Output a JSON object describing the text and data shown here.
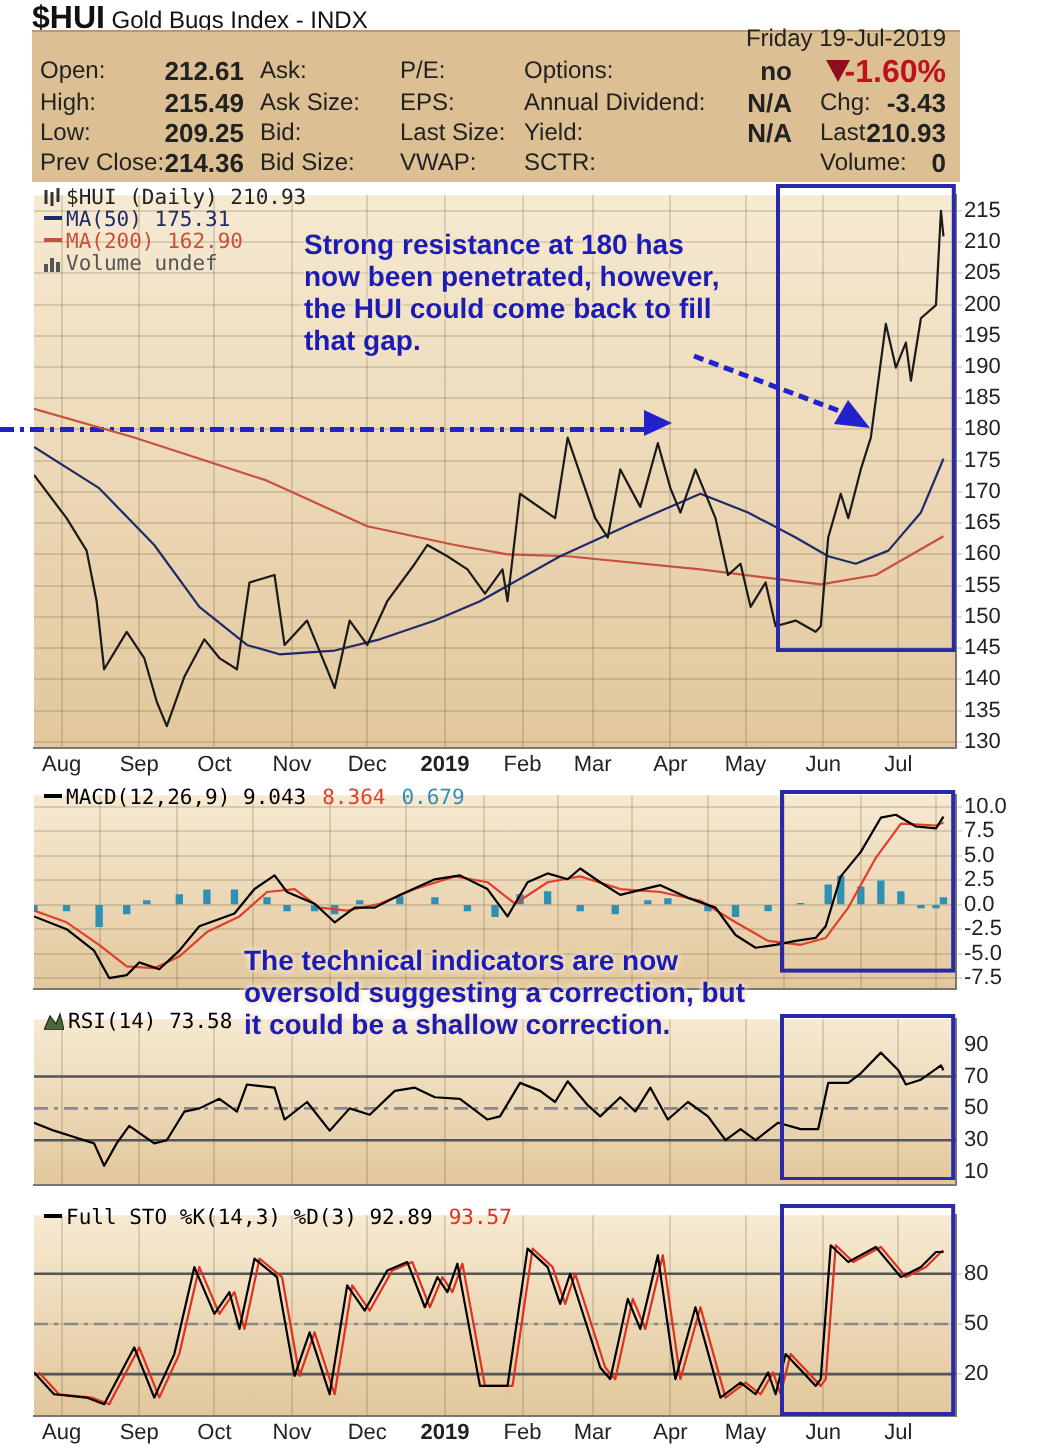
{
  "chart_data": [
    {
      "type": "other",
      "title": "$HUI",
      "subtitle": "Gold Bugs Index - INDX",
      "annotations": [
        "Friday 19-Jul-2019",
        "Open:",
        "212.61",
        "Ask:",
        "P/E:",
        "Options:",
        "no",
        "-1.60%",
        "High:",
        "215.49",
        "Ask Size:",
        "EPS:",
        "Annual Dividend:",
        "N/A",
        "Chg:",
        "-3.43",
        "Low:",
        "209.25",
        "Bid:",
        "Last Size:",
        "Yield:",
        "N/A",
        "Last:",
        "210.93",
        "Prev Close:",
        "214.36",
        "Bid Size:",
        "VWAP:",
        "SCTR:",
        "Volume:",
        "0"
      ]
    },
    {
      "type": "line",
      "xlim": [
        "2018-07-21",
        "2019-07-24"
      ],
      "xticks": [
        {
          "value": "2018-08-01",
          "label": "Aug"
        },
        {
          "value": "2018-09-01",
          "label": "Sep"
        },
        {
          "value": "2018-10-01",
          "label": "Oct"
        },
        {
          "value": "2018-11-01",
          "label": "Nov"
        },
        {
          "value": "2018-12-01",
          "label": "Dec"
        },
        {
          "value": "2019-01-01",
          "label": "2019"
        },
        {
          "value": "2019-02-01",
          "label": "Feb"
        },
        {
          "value": "2019-03-01",
          "label": "Mar"
        },
        {
          "value": "2019-04-01",
          "label": "Apr"
        },
        {
          "value": "2019-05-01",
          "label": "May"
        },
        {
          "value": "2019-06-01",
          "label": "Jun"
        },
        {
          "value": "2019-07-01",
          "label": "Jul"
        }
      ],
      "ylim": [
        129,
        217.5
      ],
      "yticks": [
        130,
        135,
        140,
        145,
        150,
        155,
        160,
        165,
        170,
        175,
        180,
        185,
        190,
        195,
        200,
        205,
        210,
        215
      ],
      "grid": true,
      "legend": "top left",
      "marker": "none",
      "ref_lines": [
        {
          "axis": "y",
          "value": 180,
          "color": "#2222cc",
          "line_style": "dashed"
        }
      ],
      "annotations": [
        "Volume undef",
        "Strong resistance at 180 has now been penetrated, however, the HUI could come back to fill that gap."
      ],
      "series": [
        {
          "name": "$HUI (Daily) 210.93",
          "color": "#1a1a1a",
          "x": [
            "2018-07-21",
            "2018-08-03",
            "2018-08-11",
            "2018-08-15",
            "2018-08-18",
            "2018-08-27",
            "2018-09-03",
            "2018-09-08",
            "2018-09-12",
            "2018-09-19",
            "2018-09-27",
            "2018-10-03",
            "2018-10-10",
            "2018-10-15",
            "2018-10-25",
            "2018-10-29",
            "2018-11-07",
            "2018-11-15",
            "2018-11-18",
            "2018-11-24",
            "2018-12-01",
            "2018-12-09",
            "2018-12-20",
            "2018-12-25",
            "2019-01-02",
            "2019-01-10",
            "2019-01-17",
            "2019-01-24",
            "2019-01-26",
            "2019-01-31",
            "2019-02-14",
            "2019-02-19",
            "2019-03-02",
            "2019-03-07",
            "2019-03-12",
            "2019-03-20",
            "2019-03-27",
            "2019-04-01",
            "2019-04-05",
            "2019-04-11",
            "2019-04-19",
            "2019-04-24",
            "2019-04-29",
            "2019-05-03",
            "2019-05-09",
            "2019-05-13",
            "2019-05-21",
            "2019-05-29",
            "2019-05-31",
            "2019-06-03",
            "2019-06-08",
            "2019-06-11",
            "2019-06-16",
            "2019-06-20",
            "2019-06-23",
            "2019-06-26",
            "2019-06-30",
            "2019-07-04",
            "2019-07-06",
            "2019-07-10",
            "2019-07-16",
            "2019-07-18",
            "2019-07-19"
          ],
          "values": [
            172.7,
            165.8,
            160.6,
            152.5,
            141.6,
            147.6,
            143.4,
            136.4,
            132.5,
            140.4,
            146.4,
            143.4,
            141.6,
            155.5,
            156.7,
            145.5,
            149.4,
            141.6,
            138.6,
            149.4,
            145.5,
            152.5,
            158.5,
            161.5,
            159.7,
            157.6,
            153.7,
            157.6,
            152.5,
            169.7,
            165.8,
            178.7,
            165.8,
            162.7,
            173.6,
            167.6,
            177.8,
            170.6,
            166.7,
            173.6,
            165.8,
            156.7,
            158.5,
            151.6,
            155.5,
            148.5,
            149.4,
            147.6,
            148.5,
            162.7,
            169.7,
            165.8,
            173.6,
            178.7,
            187.8,
            196.9,
            189.9,
            193.9,
            187.8,
            197.8,
            199.9,
            215,
            210.9
          ]
        },
        {
          "name": "MA(50) 175.31",
          "color": "#1f2a6b",
          "x": [
            "2018-07-21",
            "2018-08-16",
            "2018-09-07",
            "2018-09-25",
            "2018-10-14",
            "2018-10-27",
            "2018-11-18",
            "2018-12-06",
            "2018-12-28",
            "2019-01-15",
            "2019-02-16",
            "2019-03-18",
            "2019-04-13",
            "2019-05-02",
            "2019-05-21",
            "2019-06-03",
            "2019-06-14",
            "2019-06-27",
            "2019-07-10",
            "2019-07-19"
          ],
          "values": [
            177.2,
            170.6,
            161.5,
            151.6,
            145.5,
            144.0,
            144.6,
            146.4,
            149.4,
            152.5,
            159.7,
            165.2,
            169.7,
            166.7,
            162.7,
            159.7,
            158.5,
            160.6,
            166.7,
            175.3
          ]
        },
        {
          "name": "MA(200) 162.90",
          "color": "#c8503c",
          "x": [
            "2018-07-21",
            "2018-08-30",
            "2018-10-22",
            "2018-12-01",
            "2019-01-05",
            "2019-01-26",
            "2019-02-19",
            "2019-04-13",
            "2019-05-31",
            "2019-06-22",
            "2019-07-19"
          ],
          "values": [
            183.3,
            178.7,
            171.8,
            164.5,
            161.5,
            160.0,
            159.7,
            157.6,
            155.2,
            156.7,
            162.9
          ]
        }
      ]
    },
    {
      "type": "line",
      "xlim": [
        "2018-07-21",
        "2019-07-24"
      ],
      "xticks": [
        {
          "value": "2018-08-01",
          "label": null
        },
        {
          "value": "2018-09-01",
          "label": null
        },
        {
          "value": "2018-10-01",
          "label": null
        },
        {
          "value": "2018-11-01",
          "label": null
        },
        {
          "value": "2018-12-01",
          "label": null
        },
        {
          "value": "2019-01-01",
          "label": null
        },
        {
          "value": "2019-02-01",
          "label": null
        },
        {
          "value": "2019-03-01",
          "label": null
        },
        {
          "value": "2019-04-01",
          "label": null
        },
        {
          "value": "2019-05-01",
          "label": null
        },
        {
          "value": "2019-06-01",
          "label": null
        },
        {
          "value": "2019-07-01",
          "label": null
        }
      ],
      "ylim": [
        -8.6,
        11.2
      ],
      "yticks": [
        {
          "value": 10,
          "label": "10.0"
        },
        7.5,
        {
          "value": 5,
          "label": "5.0"
        },
        2.5,
        {
          "value": 0,
          "label": "0.0"
        },
        -2.5,
        {
          "value": -5,
          "label": "-5.0"
        },
        -7.5
      ],
      "tick_labels": "y",
      "grid": true,
      "legend": "top left",
      "marker": "none",
      "annotations": [
        "The technical indicators are now oversold suggesting a correction, but it could be a shallow correction."
      ],
      "series": [
        {
          "name": "MACD(12,26,9) 9.043",
          "color": "#000000",
          "x": [
            "2018-07-21",
            "2018-08-03",
            "2018-08-14",
            "2018-08-20",
            "2018-08-27",
            "2018-09-01",
            "2018-09-09",
            "2018-09-17",
            "2018-09-25",
            "2018-10-09",
            "2018-10-17",
            "2018-10-25",
            "2018-10-30",
            "2018-11-10",
            "2018-11-18",
            "2018-11-26",
            "2018-12-04",
            "2018-12-14",
            "2018-12-28",
            "2019-01-07",
            "2019-01-18",
            "2019-01-26",
            "2019-02-03",
            "2019-02-11",
            "2019-02-19",
            "2019-02-24",
            "2019-03-04",
            "2019-03-12",
            "2019-03-28",
            "2019-04-08",
            "2019-04-19",
            "2019-04-27",
            "2019-05-05",
            "2019-05-13",
            "2019-05-21",
            "2019-05-29",
            "2019-06-02",
            "2019-06-08",
            "2019-06-16",
            "2019-06-24",
            "2019-06-30",
            "2019-07-08",
            "2019-07-16",
            "2019-07-19"
          ],
          "values": [
            -1.2,
            -2.5,
            -4.7,
            -7.5,
            -7.2,
            -5.9,
            -6.6,
            -4.7,
            -2.2,
            -0.9,
            1.6,
            3.0,
            1.3,
            0.1,
            -1.8,
            -0.3,
            -0.3,
            1.0,
            2.6,
            3.0,
            1.6,
            -1.2,
            2.3,
            3.2,
            2.6,
            3.7,
            2.3,
            1.0,
            2.0,
            0.7,
            -0.3,
            -3.1,
            -4.4,
            -4.1,
            -3.7,
            -3.4,
            -2.2,
            2.9,
            5.4,
            8.9,
            9.2,
            8.0,
            7.8,
            9.0
          ]
        },
        {
          "name": "8.364",
          "color": "#e0402a",
          "x": [
            "2018-07-21",
            "2018-08-03",
            "2018-08-16",
            "2018-08-27",
            "2018-09-07",
            "2018-09-17",
            "2018-09-28",
            "2018-10-11",
            "2018-10-22",
            "2018-11-02",
            "2018-11-12",
            "2018-11-23",
            "2018-12-06",
            "2018-12-20",
            "2019-01-05",
            "2019-01-18",
            "2019-01-29",
            "2019-02-11",
            "2019-02-24",
            "2019-03-12",
            "2019-03-28",
            "2019-04-13",
            "2019-04-27",
            "2019-05-10",
            "2019-05-23",
            "2019-06-02",
            "2019-06-11",
            "2019-06-22",
            "2019-07-02",
            "2019-07-16",
            "2019-07-19"
          ],
          "values": [
            -0.6,
            -1.8,
            -4.1,
            -6.3,
            -6.5,
            -5.3,
            -2.8,
            -1.2,
            1.3,
            1.6,
            -0.3,
            -0.6,
            0.1,
            1.6,
            2.9,
            2.3,
            0.1,
            2.3,
            2.9,
            1.6,
            1.3,
            0.4,
            -1.8,
            -3.7,
            -4.1,
            -3.4,
            -0.3,
            4.8,
            8.3,
            8.1,
            8.4
          ]
        },
        {
          "name": "0.679",
          "type": "bar",
          "color": "#2f8fb5",
          "x": [
            "2018-07-21",
            "2018-08-03",
            "2018-08-16",
            "2018-08-27",
            "2018-09-04",
            "2018-09-17",
            "2018-09-28",
            "2018-10-09",
            "2018-10-22",
            "2018-10-30",
            "2018-11-10",
            "2018-11-18",
            "2018-11-28",
            "2018-12-14",
            "2018-12-28",
            "2019-01-10",
            "2019-01-21",
            "2019-01-31",
            "2019-02-11",
            "2019-02-24",
            "2019-03-10",
            "2019-03-23",
            "2019-03-31",
            "2019-04-16",
            "2019-04-27",
            "2019-05-10",
            "2019-05-23",
            "2019-06-03",
            "2019-06-08",
            "2019-06-16",
            "2019-06-24",
            "2019-07-02",
            "2019-07-10",
            "2019-07-16",
            "2019-07-19"
          ],
          "values": [
            -0.6,
            -0.6,
            -2.2,
            -0.9,
            0.4,
            1.0,
            1.5,
            1.5,
            0.7,
            -0.6,
            -0.6,
            -0.9,
            0.4,
            0.8,
            0.7,
            -0.6,
            -1.2,
            1.0,
            1.3,
            -0.6,
            -0.9,
            0.4,
            0.6,
            -0.6,
            -1.2,
            -0.6,
            0.1,
            2.0,
            2.9,
            1.8,
            2.4,
            1.3,
            -0.3,
            -0.3,
            0.7
          ]
        }
      ]
    },
    {
      "type": "line",
      "xlim": [
        "2018-07-21",
        "2019-07-24"
      ],
      "xticks": [
        {
          "value": "2018-08-01",
          "label": null
        },
        {
          "value": "2018-09-01",
          "label": null
        },
        {
          "value": "2018-10-01",
          "label": null
        },
        {
          "value": "2018-11-01",
          "label": null
        },
        {
          "value": "2018-12-01",
          "label": null
        },
        {
          "value": "2019-01-01",
          "label": null
        },
        {
          "value": "2019-02-01",
          "label": null
        },
        {
          "value": "2019-03-01",
          "label": null
        },
        {
          "value": "2019-04-01",
          "label": null
        },
        {
          "value": "2019-05-01",
          "label": null
        },
        {
          "value": "2019-06-01",
          "label": null
        },
        {
          "value": "2019-07-01",
          "label": null
        }
      ],
      "ylim": [
        2,
        106
      ],
      "yticks": [
        10,
        30,
        50,
        70,
        90
      ],
      "tick_labels": "y",
      "grid": "x",
      "legend": "top left",
      "marker": "none",
      "ref_lines": [
        {
          "axis": "y",
          "value": 70,
          "color": "#555555",
          "line_style": "solid"
        },
        {
          "axis": "y",
          "value": 50,
          "color": "#888888",
          "line_style": "dashed"
        },
        {
          "axis": "y",
          "value": 30,
          "color": "#555555",
          "line_style": "solid"
        }
      ],
      "series": [
        {
          "name": "RSI(14) 73.58",
          "color": "#000000",
          "x": [
            "2018-07-21",
            "2018-07-29",
            "2018-08-06",
            "2018-08-14",
            "2018-08-18",
            "2018-08-23",
            "2018-08-28",
            "2018-09-07",
            "2018-09-12",
            "2018-09-19",
            "2018-09-25",
            "2018-10-03",
            "2018-10-10",
            "2018-10-14",
            "2018-10-25",
            "2018-10-29",
            "2018-11-07",
            "2018-11-16",
            "2018-11-24",
            "2018-12-02",
            "2018-12-12",
            "2018-12-20",
            "2018-12-28",
            "2019-01-07",
            "2019-01-18",
            "2019-01-23",
            "2019-01-31",
            "2019-02-08",
            "2019-02-14",
            "2019-02-19",
            "2019-02-27",
            "2019-03-04",
            "2019-03-12",
            "2019-03-18",
            "2019-03-24",
            "2019-03-31",
            "2019-04-08",
            "2019-04-16",
            "2019-04-23",
            "2019-04-29",
            "2019-05-05",
            "2019-05-14",
            "2019-05-23",
            "2019-05-30",
            "2019-06-03",
            "2019-06-11",
            "2019-06-16",
            "2019-06-24",
            "2019-07-01",
            "2019-07-04",
            "2019-07-10",
            "2019-07-18",
            "2019-07-19"
          ],
          "values": [
            41,
            36,
            32,
            28,
            14,
            28,
            39,
            28,
            30,
            48,
            50,
            56,
            48,
            65,
            63,
            43,
            54,
            36,
            50,
            46,
            61,
            63,
            57,
            56,
            43,
            45,
            66,
            61,
            54,
            67,
            52,
            45,
            57,
            48,
            63,
            43,
            54,
            45,
            30,
            37,
            30,
            41,
            37,
            37,
            66,
            66,
            72,
            85,
            74,
            65,
            68,
            77,
            74
          ]
        }
      ]
    },
    {
      "type": "line",
      "xlim": [
        "2018-07-21",
        "2019-07-24"
      ],
      "xticks": [
        {
          "value": "2018-08-01",
          "label": "Aug"
        },
        {
          "value": "2018-09-01",
          "label": "Sep"
        },
        {
          "value": "2018-10-01",
          "label": "Oct"
        },
        {
          "value": "2018-11-01",
          "label": "Nov"
        },
        {
          "value": "2018-12-01",
          "label": "Dec"
        },
        {
          "value": "2019-01-01",
          "label": "2019"
        },
        {
          "value": "2019-02-01",
          "label": "Feb"
        },
        {
          "value": "2019-03-01",
          "label": "Mar"
        },
        {
          "value": "2019-04-01",
          "label": "Apr"
        },
        {
          "value": "2019-05-01",
          "label": "May"
        },
        {
          "value": "2019-06-01",
          "label": "Jun"
        },
        {
          "value": "2019-07-01",
          "label": "Jul"
        }
      ],
      "ylim": [
        -5,
        115
      ],
      "yticks": [
        20,
        50,
        80
      ],
      "grid": true,
      "legend": "top left",
      "marker": "none",
      "ref_lines": [
        {
          "axis": "y",
          "value": 80,
          "color": "#555555",
          "line_style": "solid"
        },
        {
          "axis": "y",
          "value": 50,
          "color": "#888888",
          "line_style": "dashed"
        },
        {
          "axis": "y",
          "value": 20,
          "color": "#555555",
          "line_style": "solid"
        }
      ],
      "series": [
        {
          "name": "Full STO %K(14,3) %D(3) 92.89",
          "color": "#000000",
          "x": [
            "2018-07-21",
            "2018-07-29",
            "2018-08-11",
            "2018-08-18",
            "2018-08-24",
            "2018-08-30",
            "2018-09-07",
            "2018-09-15",
            "2018-09-23",
            "2018-10-01",
            "2018-10-07",
            "2018-10-11",
            "2018-10-17",
            "2018-10-26",
            "2018-11-02",
            "2018-11-08",
            "2018-11-16",
            "2018-11-23",
            "2018-11-30",
            "2018-12-09",
            "2018-12-17",
            "2018-12-24",
            "2018-12-29",
            "2019-01-02",
            "2019-01-06",
            "2019-01-15",
            "2019-01-26",
            "2019-02-03",
            "2019-02-11",
            "2019-02-16",
            "2019-02-20",
            "2019-03-04",
            "2019-03-08",
            "2019-03-15",
            "2019-03-20",
            "2019-03-27",
            "2019-04-03",
            "2019-04-11",
            "2019-04-21",
            "2019-04-29",
            "2019-05-05",
            "2019-05-10",
            "2019-05-13",
            "2019-05-17",
            "2019-05-29",
            "2019-05-31",
            "2019-06-04",
            "2019-06-11",
            "2019-06-22",
            "2019-07-02",
            "2019-07-10",
            "2019-07-16",
            "2019-07-19"
          ],
          "values": [
            21,
            8,
            6,
            2,
            19,
            36,
            6,
            32,
            84,
            56,
            69,
            47,
            89,
            78,
            19,
            45,
            8,
            73,
            58,
            82,
            87,
            60,
            78,
            69,
            86,
            13,
            13,
            95,
            84,
            62,
            80,
            24,
            17,
            65,
            47,
            91,
            17,
            60,
            6,
            15,
            8,
            21,
            8,
            32,
            13,
            17,
            97,
            87,
            96,
            78,
            84,
            93,
            93
          ]
        },
        {
          "name": "93.57",
          "color": "#e03020",
          "x": [
            "2018-07-23",
            "2018-07-31",
            "2018-08-13",
            "2018-08-20",
            "2018-08-26",
            "2018-09-01",
            "2018-09-09",
            "2018-09-17",
            "2018-09-25",
            "2018-10-03",
            "2018-10-09",
            "2018-10-13",
            "2018-10-19",
            "2018-10-28",
            "2018-11-04",
            "2018-11-10",
            "2018-11-18",
            "2018-11-25",
            "2018-12-02",
            "2018-12-11",
            "2018-12-19",
            "2018-12-26",
            "2018-12-31",
            "2019-01-04",
            "2019-01-08",
            "2019-01-17",
            "2019-01-28",
            "2019-02-05",
            "2019-02-13",
            "2019-02-18",
            "2019-02-22",
            "2019-03-06",
            "2019-03-10",
            "2019-03-17",
            "2019-03-22",
            "2019-03-29",
            "2019-04-05",
            "2019-04-13",
            "2019-04-23",
            "2019-05-01",
            "2019-05-07",
            "2019-05-12",
            "2019-05-15",
            "2019-05-19",
            "2019-05-31",
            "2019-06-02",
            "2019-06-06",
            "2019-06-13",
            "2019-06-24",
            "2019-07-04",
            "2019-07-12",
            "2019-07-18",
            "2019-07-19"
          ],
          "values": [
            21,
            8,
            6,
            2,
            19,
            36,
            6,
            32,
            84,
            56,
            69,
            47,
            89,
            78,
            19,
            45,
            8,
            73,
            58,
            82,
            87,
            60,
            78,
            69,
            86,
            13,
            13,
            95,
            84,
            62,
            80,
            24,
            17,
            65,
            47,
            91,
            17,
            60,
            6,
            15,
            8,
            21,
            8,
            32,
            13,
            17,
            97,
            87,
            96,
            78,
            84,
            93,
            94
          ]
        }
      ]
    }
  ]
}
